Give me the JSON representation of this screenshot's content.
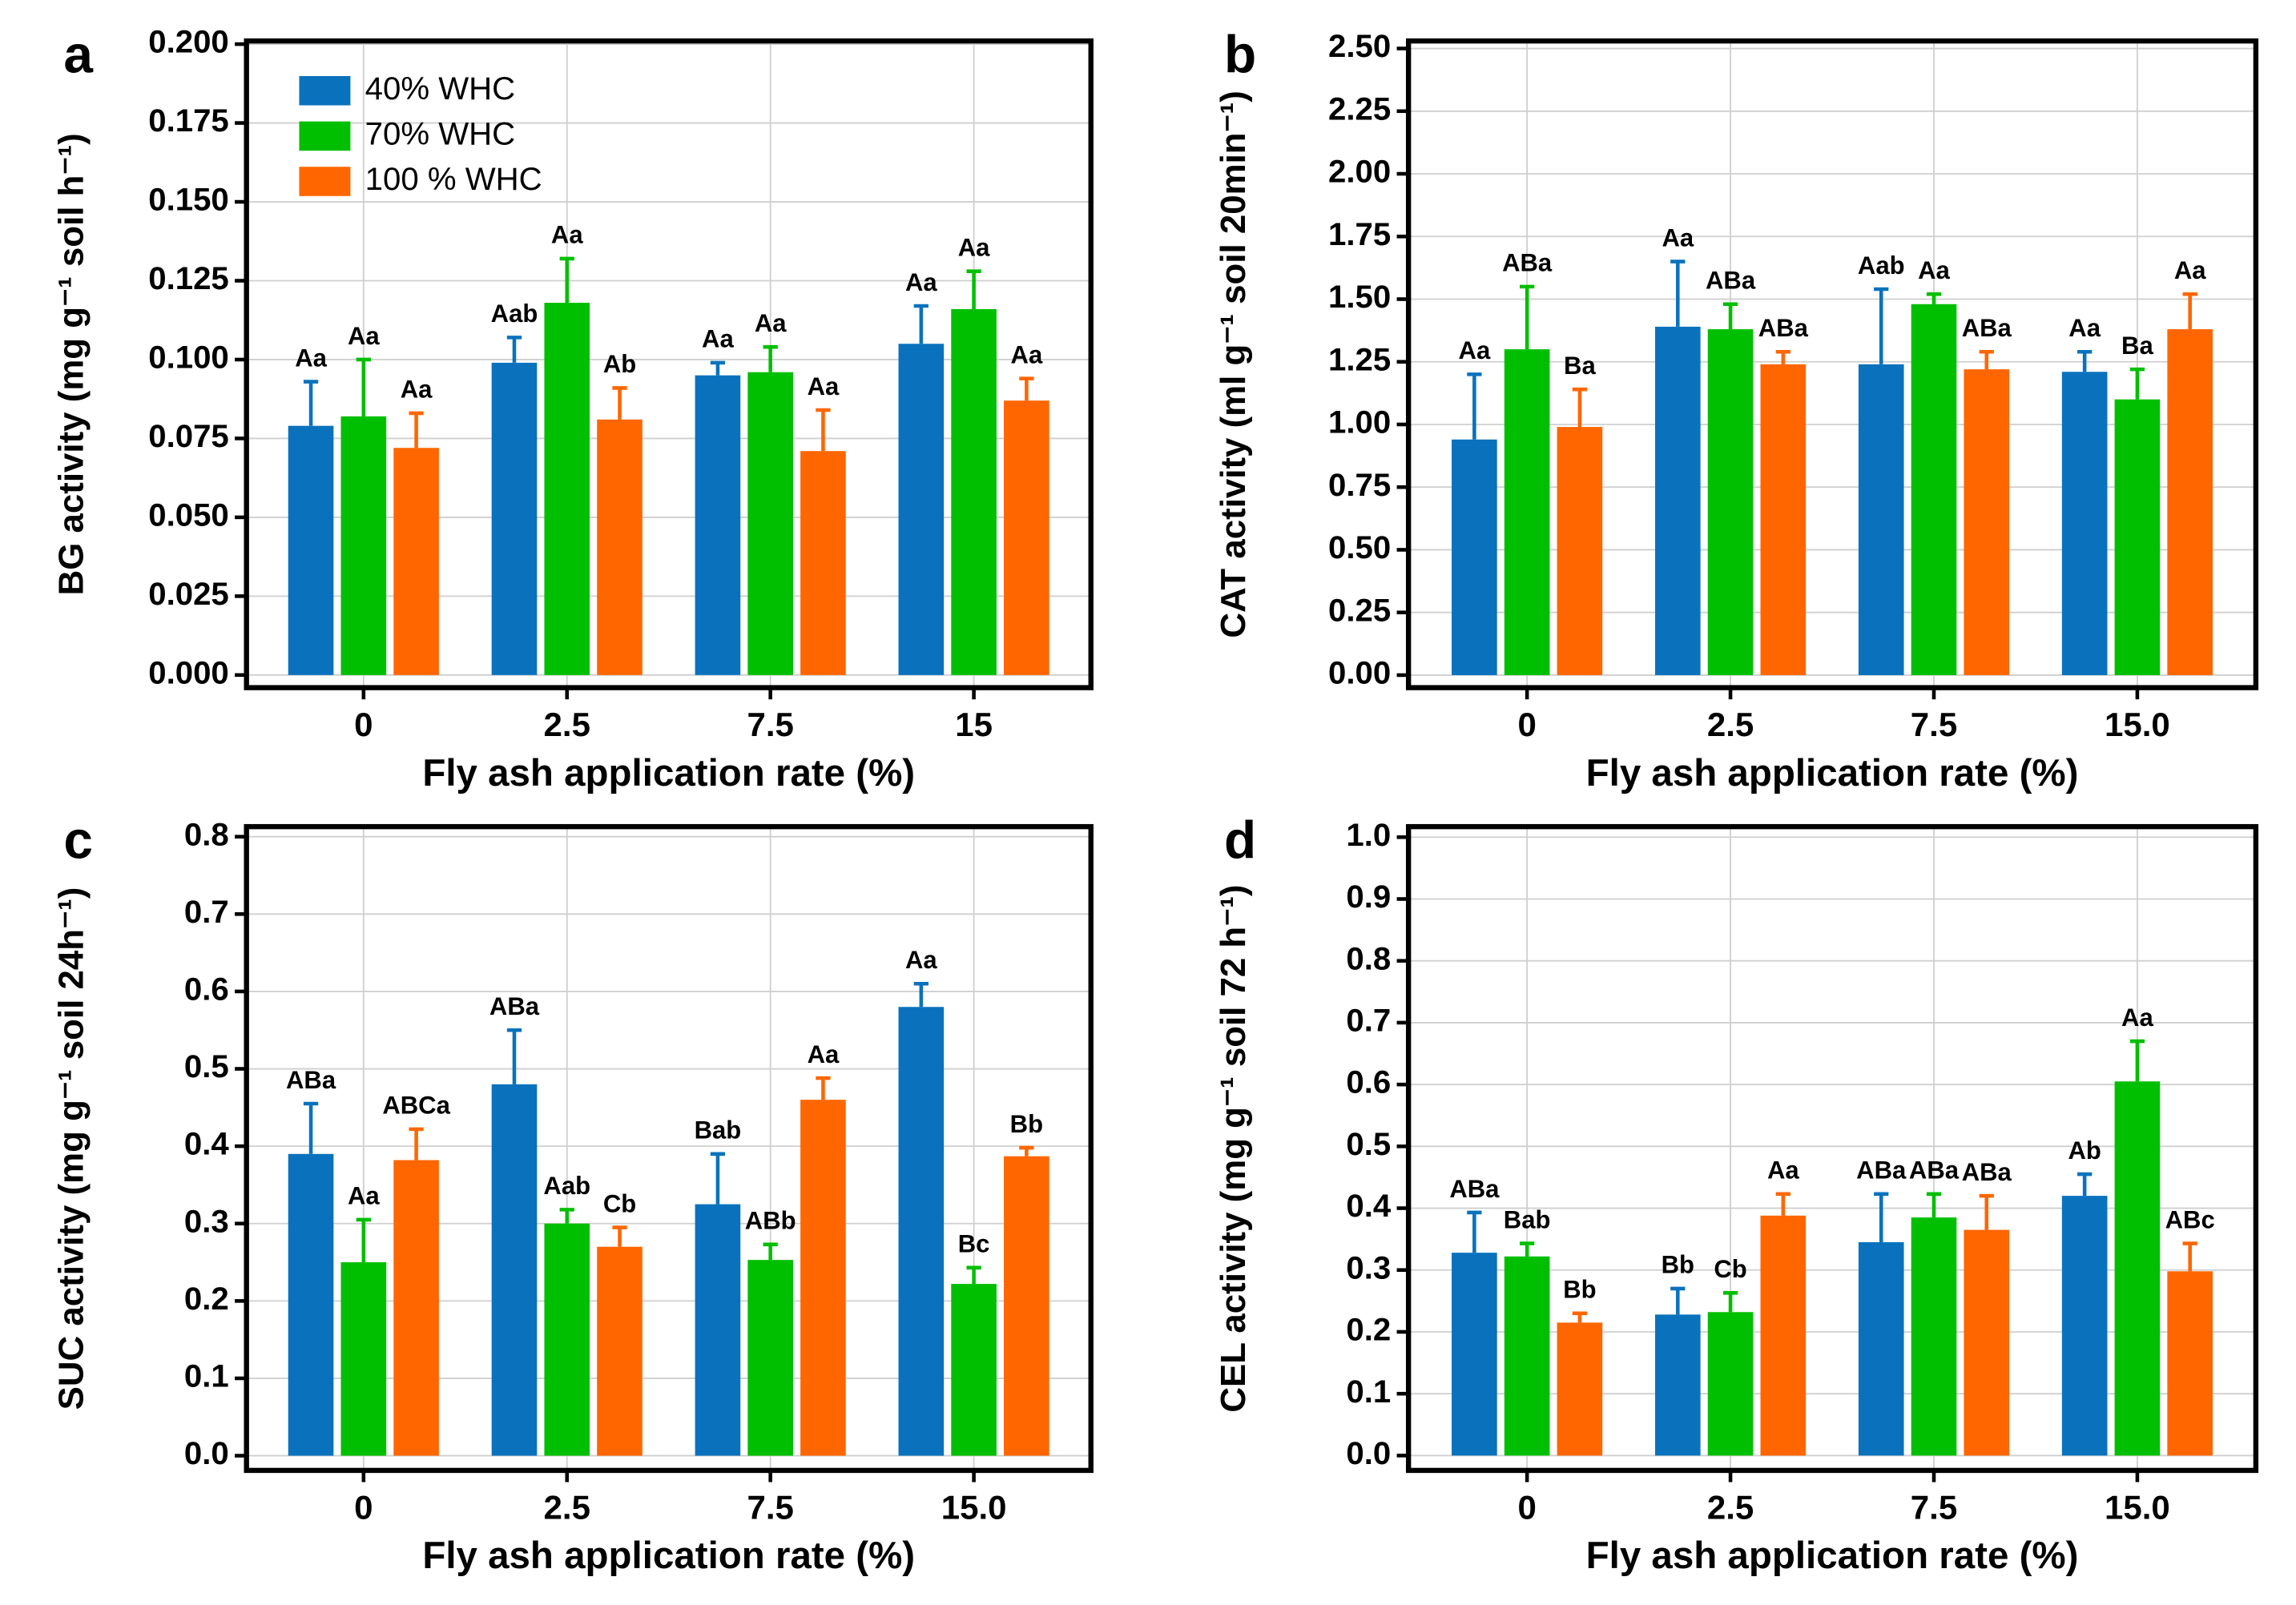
{
  "chart_data": [
    {
      "type": "bar",
      "panel": "a",
      "ylabel": "BG activity (mg g⁻¹ soil h⁻¹)",
      "xlabel": "Fly ash application  rate (%)",
      "categories": [
        "0",
        "2.5",
        "7.5",
        "15"
      ],
      "series": [
        {
          "name": "40% WHC",
          "color": "#0a72bd",
          "values": [
            0.079,
            0.099,
            0.095,
            0.105
          ],
          "errors": [
            0.014,
            0.008,
            0.004,
            0.012
          ],
          "letters": [
            "Aa",
            "Aab",
            "Aa",
            "Aa"
          ]
        },
        {
          "name": "70% WHC",
          "color": "#00bf00",
          "values": [
            0.082,
            0.118,
            0.096,
            0.116
          ],
          "errors": [
            0.018,
            0.014,
            0.008,
            0.012
          ],
          "letters": [
            "Aa",
            "Aa",
            "Aa",
            "Aa"
          ]
        },
        {
          "name": "100 % WHC",
          "color": "#ff6600",
          "values": [
            0.072,
            0.081,
            0.071,
            0.087
          ],
          "errors": [
            0.011,
            0.01,
            0.013,
            0.007
          ],
          "letters": [
            "Aa",
            "Ab",
            "Aa",
            "Aa"
          ]
        }
      ],
      "ylim": [
        -0.004,
        0.201
      ],
      "yticks": [
        {
          "value": 0,
          "label": "0.000"
        },
        {
          "value": 0.025,
          "label": "0.025"
        },
        {
          "value": 0.05,
          "label": "0.050"
        },
        {
          "value": 0.075,
          "label": "0.075"
        },
        {
          "value": 0.1,
          "label": "0.100"
        },
        {
          "value": 0.125,
          "label": "0.125"
        },
        {
          "value": 0.15,
          "label": "0.150"
        },
        {
          "value": 0.175,
          "label": "0.175"
        },
        {
          "value": 0.2,
          "label": "0.200"
        }
      ],
      "grid": true,
      "legend": "upper left"
    },
    {
      "type": "bar",
      "panel": "b",
      "ylabel": "CAT activity (ml g⁻¹ soil 20min⁻¹)",
      "xlabel": "Fly ash application  rate (%)",
      "categories": [
        "0",
        "2.5",
        "7.5",
        "15.0"
      ],
      "series": [
        {
          "color": "#0a72bd",
          "values": [
            0.94,
            1.39,
            1.24,
            1.21
          ],
          "errors": [
            0.26,
            0.26,
            0.3,
            0.08
          ],
          "letters": [
            "Aa",
            "Aa",
            "Aab",
            "Aa"
          ]
        },
        {
          "color": "#00bf00",
          "values": [
            1.3,
            1.38,
            1.48,
            1.1
          ],
          "errors": [
            0.25,
            0.1,
            0.04,
            0.12
          ],
          "letters": [
            "ABa",
            "ABa",
            "Aa",
            "Ba"
          ]
        },
        {
          "color": "#ff6600",
          "values": [
            0.99,
            1.24,
            1.22,
            1.38
          ],
          "errors": [
            0.15,
            0.05,
            0.07,
            0.14
          ],
          "letters": [
            "Ba",
            "ABa",
            "ABa",
            "Aa"
          ]
        }
      ],
      "ylim": [
        -0.05,
        2.53
      ],
      "yticks": [
        {
          "value": 0,
          "label": "0.00"
        },
        {
          "value": 0.25,
          "label": "0.25"
        },
        {
          "value": 0.5,
          "label": "0.50"
        },
        {
          "value": 0.75,
          "label": "0.75"
        },
        {
          "value": 1,
          "label": "1.00"
        },
        {
          "value": 1.25,
          "label": "1.25"
        },
        {
          "value": 1.5,
          "label": "1.50"
        },
        {
          "value": 1.75,
          "label": "1.75"
        },
        {
          "value": 2,
          "label": "2.00"
        },
        {
          "value": 2.25,
          "label": "2.25"
        },
        {
          "value": 2.5,
          "label": "2.50"
        }
      ],
      "grid": true
    },
    {
      "type": "bar",
      "panel": "c",
      "ylabel": "SUC activity (mg g⁻¹ soil 24h⁻¹)",
      "xlabel": "Fly ash application  rate (%)",
      "categories": [
        "0",
        "2.5",
        "7.5",
        "15.0"
      ],
      "series": [
        {
          "color": "#0a72bd",
          "values": [
            0.39,
            0.48,
            0.325,
            0.58
          ],
          "errors": [
            0.065,
            0.07,
            0.065,
            0.03
          ],
          "letters": [
            "ABa",
            "ABa",
            "Bab",
            "Aa"
          ]
        },
        {
          "color": "#00bf00",
          "values": [
            0.25,
            0.3,
            0.253,
            0.222
          ],
          "errors": [
            0.055,
            0.018,
            0.02,
            0.021
          ],
          "letters": [
            "Aa",
            "Aab",
            "ABb",
            "Bc"
          ]
        },
        {
          "color": "#ff6600",
          "values": [
            0.382,
            0.27,
            0.46,
            0.387
          ],
          "errors": [
            0.04,
            0.025,
            0.028,
            0.011
          ],
          "letters": [
            "ABCa",
            "Cb",
            "Aa",
            "Bb"
          ]
        }
      ],
      "ylim": [
        -0.019,
        0.813
      ],
      "yticks": [
        {
          "value": 0,
          "label": "0.0"
        },
        0.1,
        0.2,
        0.3,
        0.4,
        0.5,
        0.6,
        0.7,
        0.8
      ],
      "grid": true
    },
    {
      "type": "bar",
      "panel": "d",
      "ylabel": "CEL activity (mg g⁻¹ soil 72 h⁻¹)",
      "xlabel": "Fly ash application  rate (%)",
      "categories": [
        "0",
        "2.5",
        "7.5",
        "15.0"
      ],
      "series": [
        {
          "color": "#0a72bd",
          "values": [
            0.328,
            0.228,
            0.345,
            0.42
          ],
          "errors": [
            0.065,
            0.042,
            0.078,
            0.035
          ],
          "letters": [
            "ABa",
            "Bb",
            "ABa",
            "Ab"
          ]
        },
        {
          "color": "#00bf00",
          "values": [
            0.322,
            0.232,
            0.385,
            0.605
          ],
          "errors": [
            0.021,
            0.031,
            0.038,
            0.065
          ],
          "letters": [
            "Bab",
            "Cb",
            "ABa",
            "Aa"
          ]
        },
        {
          "color": "#ff6600",
          "values": [
            0.215,
            0.388,
            0.365,
            0.298
          ],
          "errors": [
            0.015,
            0.035,
            0.055,
            0.045
          ],
          "letters": [
            "Bb",
            "Aa",
            "ABa",
            "ABc"
          ]
        }
      ],
      "ylim": [
        -0.024,
        1.017
      ],
      "yticks": [
        {
          "value": 0,
          "label": "0.0"
        },
        0.1,
        0.2,
        0.3,
        0.4,
        0.5,
        0.6,
        0.7,
        0.8,
        0.9,
        {
          "value": 1,
          "label": "1.0"
        }
      ],
      "grid": true
    }
  ]
}
